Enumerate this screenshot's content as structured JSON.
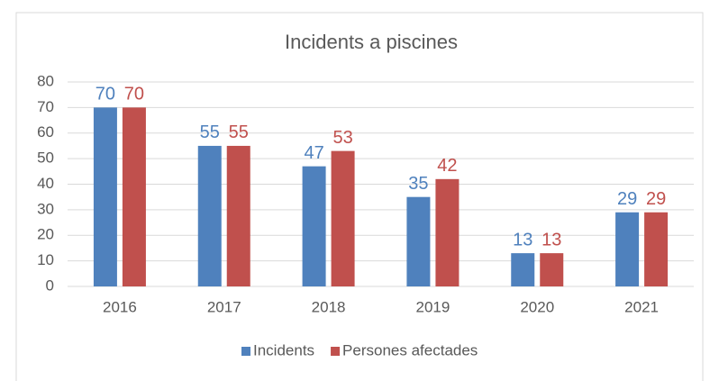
{
  "chart_data": {
    "type": "bar",
    "title": "Incidents a piscines",
    "categories": [
      "2016",
      "2017",
      "2018",
      "2019",
      "2020",
      "2021"
    ],
    "series": [
      {
        "name": "Incidents",
        "color": "#4f81bd",
        "values": [
          70,
          55,
          47,
          35,
          13,
          29
        ]
      },
      {
        "name": "Persones afectades",
        "color": "#c0504d",
        "values": [
          70,
          55,
          53,
          42,
          13,
          29
        ]
      }
    ],
    "ylim": [
      0,
      80
    ],
    "yticks": [
      0,
      10,
      20,
      30,
      40,
      50,
      60,
      70,
      80
    ],
    "grid": true,
    "legend": "bottom"
  }
}
